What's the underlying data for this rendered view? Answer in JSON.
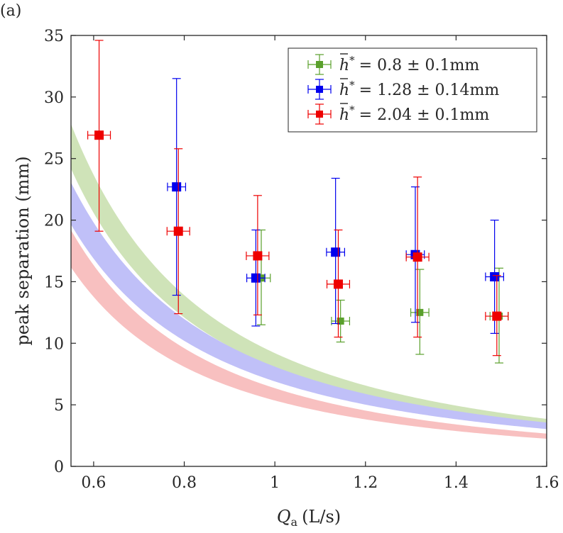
{
  "panel_label": "(a)",
  "chart_data": {
    "type": "scatter",
    "title": "",
    "xlabel": "Q",
    "xlabel_subscript": "a",
    "xlabel_units": "(L/s)",
    "ylabel": "peak separation (mm)",
    "xlim": [
      0.55,
      1.6
    ],
    "ylim": [
      0,
      35
    ],
    "xticks": [
      0.6,
      0.8,
      1,
      1.2,
      1.4,
      1.6
    ],
    "xtick_labels": [
      "0.6",
      "0.8",
      "1",
      "1.2",
      "1.4",
      "1.6"
    ],
    "yticks": [
      0,
      5,
      10,
      15,
      20,
      25,
      30,
      35
    ],
    "ytick_labels": [
      "0",
      "5",
      "10",
      "15",
      "20",
      "25",
      "30",
      "35"
    ],
    "grid": false,
    "legend_position": "top-right",
    "series": [
      {
        "name": "h* = 0.8 ± 0.1mm",
        "legend_symbol": "h*",
        "legend_text": "= 0.8 ± 0.1mm",
        "color": "#5aa02c",
        "band_color": "#cfe3b8",
        "marker_size": "small",
        "band": {
          "k_low": 8.0,
          "k_high": 9.2,
          "p": 1.85
        },
        "points": [
          {
            "x": 0.97,
            "y": 15.3,
            "xerr": 0.02,
            "ylow": 11.5,
            "yhigh": 19.2
          },
          {
            "x": 1.145,
            "y": 11.8,
            "xerr": 0.02,
            "ylow": 10.1,
            "yhigh": 13.5
          },
          {
            "x": 1.32,
            "y": 12.5,
            "xerr": 0.02,
            "ylow": 9.1,
            "yhigh": 16.0
          },
          {
            "x": 1.495,
            "y": 12.2,
            "xerr": 0.02,
            "ylow": 8.4,
            "yhigh": 16.1
          }
        ]
      },
      {
        "name": "h* = 1.28 ± 0.14mm",
        "legend_symbol": "h*",
        "legend_text": "= 1.28 ± 0.14mm",
        "color": "#0000ee",
        "band_color": "#c0c0f8",
        "marker_size": "large",
        "band": {
          "k_low": 6.9,
          "k_high": 8.1,
          "p": 1.75
        },
        "points": [
          {
            "x": 0.783,
            "y": 22.7,
            "xerr": 0.02,
            "ylow": 13.9,
            "yhigh": 31.5
          },
          {
            "x": 0.958,
            "y": 15.3,
            "xerr": 0.02,
            "ylow": 11.4,
            "yhigh": 19.2
          },
          {
            "x": 1.134,
            "y": 17.4,
            "xerr": 0.02,
            "ylow": 11.6,
            "yhigh": 23.4
          },
          {
            "x": 1.31,
            "y": 17.2,
            "xerr": 0.02,
            "ylow": 11.7,
            "yhigh": 22.7
          },
          {
            "x": 1.485,
            "y": 15.4,
            "xerr": 0.02,
            "ylow": 10.8,
            "yhigh": 20.0
          }
        ]
      },
      {
        "name": "h* = 2.04 ± 0.1mm",
        "legend_symbol": "h*",
        "legend_text": "= 2.04 ± 0.1mm",
        "color": "#ee0000",
        "band_color": "#f8c0c0",
        "marker_size": "large",
        "band": {
          "k_low": 5.35,
          "k_high": 6.35,
          "p": 1.85
        },
        "points": [
          {
            "x": 0.612,
            "y": 26.9,
            "xerr": 0.025,
            "ylow": 19.1,
            "yhigh": 34.6
          },
          {
            "x": 0.787,
            "y": 19.1,
            "xerr": 0.025,
            "ylow": 12.4,
            "yhigh": 25.8
          },
          {
            "x": 0.962,
            "y": 17.1,
            "xerr": 0.025,
            "ylow": 12.3,
            "yhigh": 22.0
          },
          {
            "x": 1.14,
            "y": 14.8,
            "xerr": 0.025,
            "ylow": 10.5,
            "yhigh": 19.2
          },
          {
            "x": 1.315,
            "y": 17.0,
            "xerr": 0.025,
            "ylow": 10.5,
            "yhigh": 23.5
          },
          {
            "x": 1.49,
            "y": 12.2,
            "xerr": 0.025,
            "ylow": 9.0,
            "yhigh": 15.5
          }
        ]
      }
    ]
  }
}
